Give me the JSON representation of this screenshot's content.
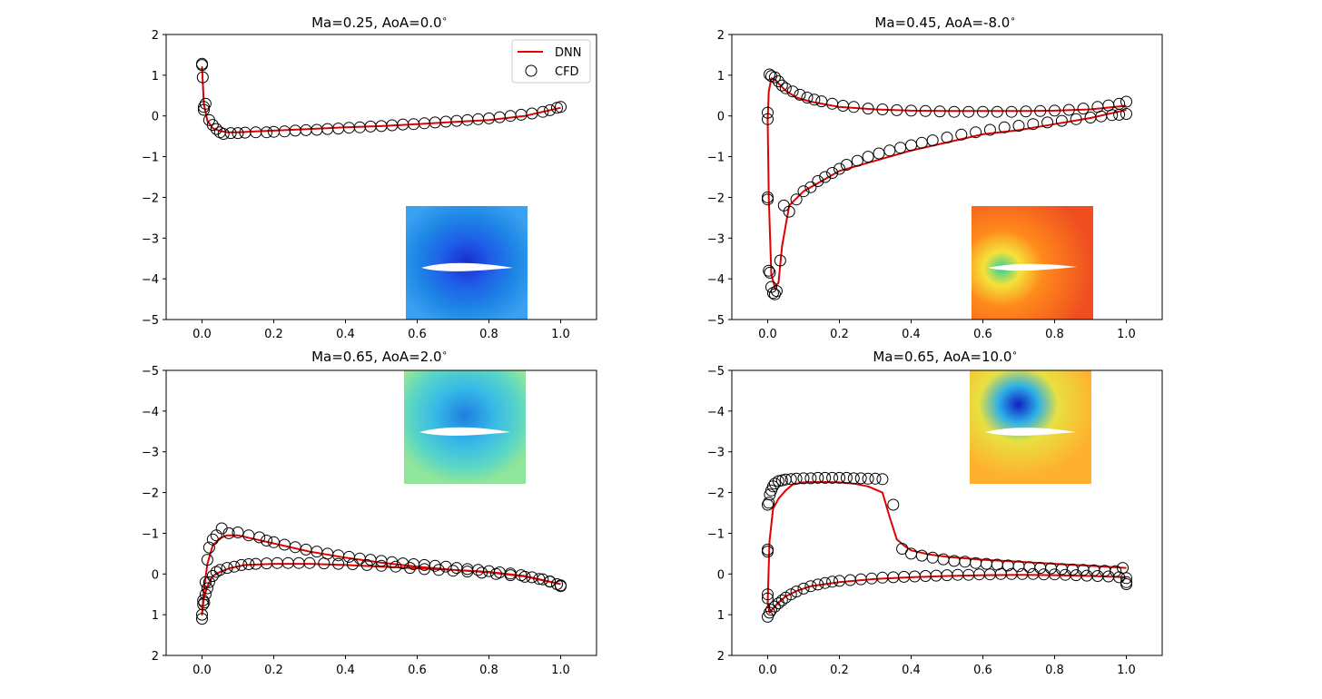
{
  "figure": {
    "legend": {
      "dnn_label": "DNN",
      "cfd_label": "CFD",
      "placement": "upper right"
    },
    "colors": {
      "dnn": "#e00000",
      "cfd": "#000000",
      "contour_blue": "#1e88e5",
      "contour_red": "#ef4e20",
      "contour_cyan": "#59d6c6",
      "contour_orange": "#ffb02e"
    }
  },
  "chart_data": [
    {
      "type": "line",
      "title": "Ma=0.25, AoA=0.0$^{\\circ}$",
      "title_text": "Ma=0.25, AoA=0.0",
      "title_sup": "∘",
      "xlim": [
        -0.1,
        1.1
      ],
      "ylim": [
        -5,
        2
      ],
      "y_inverted": false,
      "xticks": [
        "0.0",
        "0.2",
        "0.4",
        "0.6",
        "0.8",
        "1.0"
      ],
      "yticks": [
        "−5",
        "−4",
        "−3",
        "−2",
        "−1",
        "0",
        "1",
        "2"
      ],
      "legend": true,
      "inset": "Mach contour field, blue",
      "series": [
        {
          "name": "DNN",
          "x": [
            1.0,
            0.9,
            0.8,
            0.7,
            0.6,
            0.5,
            0.4,
            0.3,
            0.2,
            0.15,
            0.1,
            0.07,
            0.05,
            0.03,
            0.015,
            0.005,
            0.0,
            0.005,
            0.015,
            0.03,
            0.05,
            0.07,
            0.1,
            0.15,
            0.2,
            0.3,
            0.4,
            0.5,
            0.6,
            0.7,
            0.8,
            0.9,
            1.0
          ],
          "y": [
            0.2,
            0.0,
            -0.1,
            -0.15,
            -0.2,
            -0.25,
            -0.28,
            -0.32,
            -0.36,
            -0.38,
            -0.4,
            -0.4,
            -0.37,
            -0.3,
            -0.12,
            0.3,
            1.2,
            0.3,
            -0.12,
            -0.3,
            -0.37,
            -0.4,
            -0.4,
            -0.38,
            -0.36,
            -0.32,
            -0.28,
            -0.25,
            -0.2,
            -0.15,
            -0.1,
            0.0,
            0.2
          ]
        },
        {
          "name": "CFD",
          "x": [
            0.0,
            0.002,
            0.005,
            0.01,
            0.02,
            0.03,
            0.04,
            0.05,
            0.06,
            0.08,
            0.1,
            0.12,
            0.15,
            0.18,
            0.2,
            0.23,
            0.26,
            0.29,
            0.32,
            0.35,
            0.38,
            0.41,
            0.44,
            0.47,
            0.5,
            0.53,
            0.56,
            0.59,
            0.62,
            0.65,
            0.68,
            0.71,
            0.74,
            0.77,
            0.8,
            0.83,
            0.86,
            0.89,
            0.92,
            0.95,
            0.97,
            0.99,
            1.0,
            0.0,
            0.005
          ],
          "y": [
            1.28,
            0.95,
            0.22,
            0.3,
            -0.1,
            -0.22,
            -0.32,
            -0.4,
            -0.44,
            -0.42,
            -0.42,
            -0.41,
            -0.4,
            -0.4,
            -0.39,
            -0.38,
            -0.36,
            -0.35,
            -0.34,
            -0.32,
            -0.31,
            -0.29,
            -0.28,
            -0.26,
            -0.25,
            -0.23,
            -0.21,
            -0.2,
            -0.18,
            -0.16,
            -0.14,
            -0.12,
            -0.1,
            -0.08,
            -0.06,
            -0.03,
            0.0,
            0.03,
            0.06,
            0.1,
            0.14,
            0.2,
            0.22,
            1.25,
            0.15
          ]
        }
      ]
    },
    {
      "type": "line",
      "title": "Ma=0.45, AoA=-8.0$^{\\circ}$",
      "title_text": "Ma=0.45, AoA=-8.0",
      "title_sup": "∘",
      "xlim": [
        -0.1,
        1.1
      ],
      "ylim": [
        -5,
        2
      ],
      "y_inverted": false,
      "xticks": [
        "0.0",
        "0.2",
        "0.4",
        "0.6",
        "0.8",
        "1.0"
      ],
      "yticks": [
        "−5",
        "−4",
        "−3",
        "−2",
        "−1",
        "0",
        "1",
        "2"
      ],
      "legend": false,
      "inset": "Mach contour field, red/orange",
      "series": [
        {
          "name": "DNN",
          "x": [
            1.0,
            0.9,
            0.8,
            0.7,
            0.6,
            0.5,
            0.4,
            0.3,
            0.2,
            0.15,
            0.1,
            0.06,
            0.04,
            0.03,
            0.02,
            0.01,
            0.003,
            0.0,
            0.003,
            0.01,
            0.02,
            0.03,
            0.05,
            0.08,
            0.12,
            0.2,
            0.3,
            0.4,
            0.5,
            0.6,
            0.7,
            0.8,
            0.9,
            1.0
          ],
          "y": [
            0.15,
            -0.05,
            -0.2,
            -0.35,
            -0.45,
            -0.65,
            -0.85,
            -1.1,
            -1.35,
            -1.6,
            -1.85,
            -2.2,
            -3.2,
            -4.1,
            -4.2,
            -3.9,
            -2.0,
            -0.1,
            0.6,
            0.92,
            0.9,
            0.8,
            0.62,
            0.45,
            0.35,
            0.22,
            0.16,
            0.13,
            0.12,
            0.12,
            0.12,
            0.13,
            0.16,
            0.25
          ]
        },
        {
          "name": "CFD",
          "x": [
            0.0,
            0.0,
            0.0,
            0.0,
            0.003,
            0.006,
            0.01,
            0.015,
            0.02,
            0.025,
            0.035,
            0.045,
            0.06,
            0.08,
            0.1,
            0.12,
            0.14,
            0.16,
            0.18,
            0.2,
            0.22,
            0.25,
            0.28,
            0.31,
            0.34,
            0.37,
            0.4,
            0.43,
            0.46,
            0.5,
            0.54,
            0.58,
            0.62,
            0.66,
            0.7,
            0.74,
            0.78,
            0.82,
            0.86,
            0.9,
            0.93,
            0.96,
            0.98,
            1.0,
            0.005,
            0.01,
            0.02,
            0.03,
            0.04,
            0.05,
            0.07,
            0.09,
            0.11,
            0.13,
            0.15,
            0.18,
            0.21,
            0.24,
            0.28,
            0.32,
            0.36,
            0.4,
            0.44,
            0.48,
            0.52,
            0.56,
            0.6,
            0.64,
            0.68,
            0.72,
            0.76,
            0.8,
            0.84,
            0.88,
            0.92,
            0.95,
            0.98,
            1.0
          ],
          "y": [
            0.08,
            -0.08,
            -2.0,
            -2.05,
            -3.8,
            -3.85,
            -4.2,
            -4.35,
            -4.38,
            -4.3,
            -3.55,
            -2.2,
            -2.35,
            -2.05,
            -1.85,
            -1.75,
            -1.6,
            -1.5,
            -1.4,
            -1.3,
            -1.2,
            -1.1,
            -1.0,
            -0.92,
            -0.85,
            -0.78,
            -0.72,
            -0.66,
            -0.6,
            -0.53,
            -0.46,
            -0.4,
            -0.34,
            -0.28,
            -0.24,
            -0.2,
            -0.16,
            -0.12,
            -0.08,
            -0.04,
            -0.01,
            0.02,
            0.03,
            0.05,
            1.02,
            0.98,
            0.95,
            0.85,
            0.75,
            0.68,
            0.6,
            0.52,
            0.45,
            0.4,
            0.36,
            0.3,
            0.25,
            0.22,
            0.18,
            0.16,
            0.14,
            0.13,
            0.12,
            0.11,
            0.1,
            0.1,
            0.1,
            0.1,
            0.1,
            0.11,
            0.12,
            0.13,
            0.15,
            0.18,
            0.22,
            0.26,
            0.3,
            0.35
          ]
        }
      ]
    },
    {
      "type": "line",
      "title": "Ma=0.65, AoA=2.0$^{\\circ}$",
      "title_text": "Ma=0.65, AoA=2.0",
      "title_sup": "∘",
      "xlim": [
        -0.1,
        1.1
      ],
      "ylim": [
        2,
        -5
      ],
      "y_inverted": true,
      "xticks": [
        "0.0",
        "0.2",
        "0.4",
        "0.6",
        "0.8",
        "1.0"
      ],
      "yticks": [
        "2",
        "1",
        "0",
        "−1",
        "−2",
        "−3",
        "−4",
        "−5"
      ],
      "legend": false,
      "inset": "Mach contour field, cyan/green",
      "series": [
        {
          "name": "DNN",
          "x": [
            1.0,
            0.9,
            0.8,
            0.7,
            0.6,
            0.5,
            0.4,
            0.3,
            0.2,
            0.15,
            0.1,
            0.07,
            0.05,
            0.03,
            0.015,
            0.005,
            0.0,
            0.005,
            0.015,
            0.03,
            0.05,
            0.08,
            0.12,
            0.2,
            0.3,
            0.4,
            0.5,
            0.6,
            0.7,
            0.8,
            0.9,
            1.0
          ],
          "y": [
            0.25,
            0.05,
            -0.05,
            -0.1,
            -0.18,
            -0.28,
            -0.4,
            -0.55,
            -0.75,
            -0.85,
            -0.95,
            -0.95,
            -0.88,
            -0.7,
            -0.25,
            0.4,
            1.0,
            0.6,
            0.3,
            0.05,
            -0.05,
            -0.15,
            -0.22,
            -0.25,
            -0.25,
            -0.22,
            -0.18,
            -0.14,
            -0.1,
            -0.04,
            0.06,
            0.25
          ]
        },
        {
          "name": "CFD",
          "x": [
            0.0,
            0.0,
            0.003,
            0.006,
            0.01,
            0.015,
            0.02,
            0.03,
            0.04,
            0.055,
            0.075,
            0.1,
            0.13,
            0.16,
            0.18,
            0.2,
            0.23,
            0.26,
            0.29,
            0.32,
            0.35,
            0.38,
            0.41,
            0.44,
            0.47,
            0.5,
            0.53,
            0.56,
            0.59,
            0.62,
            0.65,
            0.68,
            0.71,
            0.74,
            0.77,
            0.8,
            0.83,
            0.86,
            0.89,
            0.92,
            0.95,
            0.97,
            0.99,
            1.0,
            0.003,
            0.01,
            0.015,
            0.02,
            0.03,
            0.04,
            0.05,
            0.07,
            0.09,
            0.11,
            0.13,
            0.15,
            0.18,
            0.21,
            0.24,
            0.27,
            0.3,
            0.34,
            0.38,
            0.42,
            0.46,
            0.5,
            0.54,
            0.58,
            0.62,
            0.66,
            0.7,
            0.74,
            0.78,
            0.82,
            0.86,
            0.9,
            0.94,
            0.97,
            1.0
          ],
          "y": [
            1.0,
            1.1,
            0.65,
            0.7,
            0.2,
            -0.35,
            -0.65,
            -0.85,
            -0.95,
            -1.12,
            -1.0,
            -1.02,
            -0.95,
            -0.9,
            -0.82,
            -0.78,
            -0.72,
            -0.66,
            -0.6,
            -0.55,
            -0.5,
            -0.46,
            -0.42,
            -0.38,
            -0.35,
            -0.32,
            -0.29,
            -0.26,
            -0.24,
            -0.22,
            -0.2,
            -0.18,
            -0.15,
            -0.12,
            -0.1,
            -0.07,
            -0.04,
            -0.01,
            0.03,
            0.08,
            0.13,
            0.19,
            0.25,
            0.3,
            0.75,
            0.5,
            0.35,
            0.2,
            0.05,
            -0.05,
            -0.1,
            -0.15,
            -0.18,
            -0.22,
            -0.24,
            -0.25,
            -0.26,
            -0.27,
            -0.27,
            -0.27,
            -0.27,
            -0.26,
            -0.25,
            -0.24,
            -0.22,
            -0.2,
            -0.18,
            -0.15,
            -0.12,
            -0.1,
            -0.08,
            -0.06,
            -0.03,
            0.0,
            0.03,
            0.07,
            0.12,
            0.18,
            0.28
          ]
        }
      ]
    },
    {
      "type": "line",
      "title": "Ma=0.65, AoA=10.0$^{\\circ}$",
      "title_text": "Ma=0.65, AoA=10.0",
      "title_sup": "∘",
      "xlim": [
        -0.1,
        1.1
      ],
      "ylim": [
        2,
        -5
      ],
      "y_inverted": true,
      "xticks": [
        "0.0",
        "0.2",
        "0.4",
        "0.6",
        "0.8",
        "1.0"
      ],
      "yticks": [
        "2",
        "1",
        "0",
        "−1",
        "−2",
        "−3",
        "−4",
        "−5"
      ],
      "legend": false,
      "inset": "Mach contour field, yellow/blue",
      "series": [
        {
          "name": "DNN",
          "x": [
            1.0,
            0.9,
            0.8,
            0.7,
            0.6,
            0.5,
            0.45,
            0.4,
            0.38,
            0.36,
            0.34,
            0.32,
            0.28,
            0.24,
            0.2,
            0.15,
            0.1,
            0.07,
            0.05,
            0.03,
            0.015,
            0.005,
            0.0,
            0.005,
            0.015,
            0.03,
            0.05,
            0.08,
            0.12,
            0.2,
            0.3,
            0.4,
            0.5,
            0.6,
            0.7,
            0.8,
            0.9,
            1.0
          ],
          "y": [
            -0.15,
            -0.2,
            -0.25,
            -0.3,
            -0.35,
            -0.42,
            -0.48,
            -0.58,
            -0.7,
            -0.85,
            -1.4,
            -2.0,
            -2.15,
            -2.22,
            -2.25,
            -2.26,
            -2.25,
            -2.2,
            -2.05,
            -1.85,
            -1.6,
            -0.8,
            0.7,
            0.95,
            0.85,
            0.7,
            0.55,
            0.42,
            0.3,
            0.2,
            0.12,
            0.08,
            0.05,
            0.03,
            0.02,
            0.03,
            0.05,
            0.08
          ]
        },
        {
          "name": "CFD",
          "x": [
            0.0,
            0.0,
            0.0,
            0.0,
            0.0,
            0.003,
            0.006,
            0.01,
            0.015,
            0.02,
            0.03,
            0.04,
            0.05,
            0.065,
            0.08,
            0.1,
            0.12,
            0.14,
            0.16,
            0.18,
            0.2,
            0.22,
            0.24,
            0.26,
            0.28,
            0.3,
            0.32,
            0.35,
            0.375,
            0.4,
            0.43,
            0.46,
            0.49,
            0.52,
            0.55,
            0.58,
            0.61,
            0.64,
            0.67,
            0.7,
            0.73,
            0.76,
            0.79,
            0.82,
            0.85,
            0.88,
            0.91,
            0.94,
            0.97,
            0.99,
            1.0,
            1.0,
            0.0,
            0.005,
            0.01,
            0.02,
            0.03,
            0.04,
            0.05,
            0.065,
            0.08,
            0.1,
            0.12,
            0.14,
            0.16,
            0.18,
            0.2,
            0.23,
            0.26,
            0.29,
            0.32,
            0.35,
            0.38,
            0.41,
            0.44,
            0.47,
            0.5,
            0.53,
            0.56,
            0.59,
            0.62,
            0.65,
            0.68,
            0.71,
            0.74,
            0.77,
            0.8,
            0.83,
            0.86,
            0.89,
            0.92,
            0.95,
            0.98,
            1.0
          ],
          "y": [
            0.5,
            0.6,
            -0.55,
            -0.6,
            -1.7,
            -1.75,
            -1.95,
            -2.05,
            -2.15,
            -2.22,
            -2.28,
            -2.3,
            -2.32,
            -2.33,
            -2.34,
            -2.35,
            -2.35,
            -2.36,
            -2.36,
            -2.36,
            -2.36,
            -2.36,
            -2.35,
            -2.35,
            -2.34,
            -2.34,
            -2.33,
            -1.7,
            -0.62,
            -0.5,
            -0.45,
            -0.4,
            -0.36,
            -0.32,
            -0.3,
            -0.27,
            -0.25,
            -0.23,
            -0.21,
            -0.19,
            -0.17,
            -0.15,
            -0.14,
            -0.12,
            -0.11,
            -0.1,
            -0.09,
            -0.08,
            -0.07,
            -0.15,
            0.2,
            0.25,
            1.05,
            0.95,
            0.88,
            0.8,
            0.72,
            0.65,
            0.58,
            0.5,
            0.43,
            0.36,
            0.3,
            0.26,
            0.22,
            0.19,
            0.17,
            0.15,
            0.13,
            0.11,
            0.09,
            0.08,
            0.07,
            0.06,
            0.05,
            0.04,
            0.03,
            0.02,
            0.02,
            0.01,
            0.01,
            0.0,
            0.0,
            0.0,
            0.0,
            0.01,
            0.01,
            0.02,
            0.03,
            0.04,
            0.05,
            0.06,
            0.08,
            0.1
          ]
        }
      ]
    }
  ]
}
